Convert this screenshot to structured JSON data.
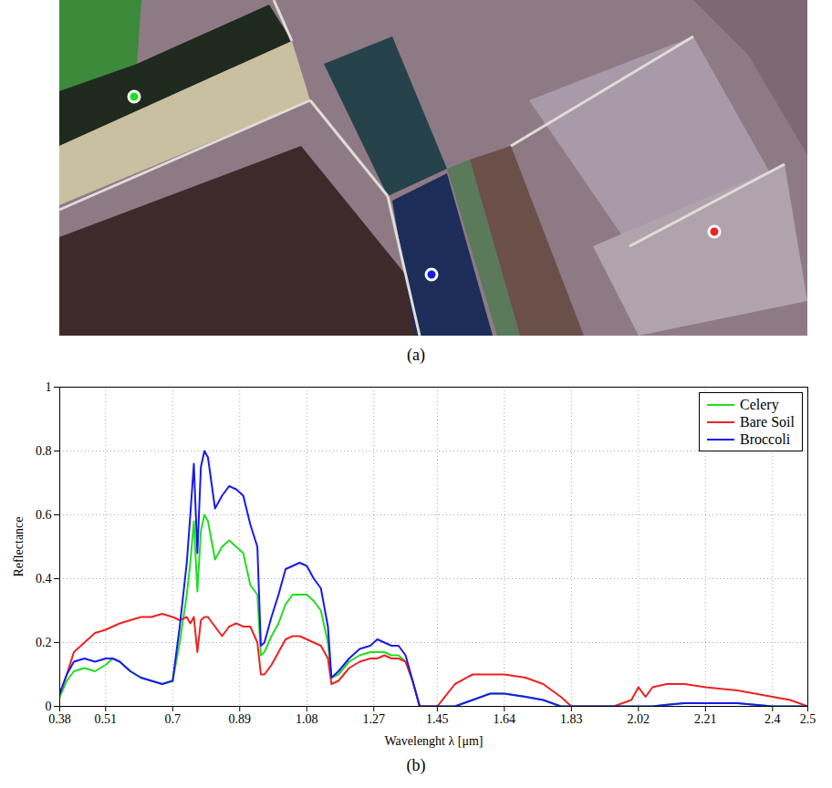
{
  "panel_labels": [
    "(a)",
    "(b)"
  ],
  "chart_data": {
    "type": "line",
    "x_label": "Wavelenght λ [μm]",
    "y_label": "Reflectance",
    "xlim": [
      0.38,
      2.5
    ],
    "xticks": [
      0.38,
      0.51,
      0.7,
      0.89,
      1.08,
      1.27,
      1.45,
      1.64,
      1.83,
      2.02,
      2.21,
      2.4,
      2.5
    ],
    "ylim": [
      0,
      1
    ],
    "yticks": [
      0,
      0.2,
      0.4,
      0.6,
      0.8,
      1
    ],
    "grid": true,
    "legend": "top-right",
    "x": [
      0.38,
      0.4,
      0.42,
      0.45,
      0.48,
      0.51,
      0.53,
      0.55,
      0.58,
      0.61,
      0.64,
      0.67,
      0.7,
      0.72,
      0.74,
      0.75,
      0.76,
      0.77,
      0.78,
      0.79,
      0.8,
      0.82,
      0.84,
      0.86,
      0.88,
      0.9,
      0.92,
      0.94,
      0.95,
      0.96,
      0.98,
      1.0,
      1.02,
      1.04,
      1.06,
      1.08,
      1.1,
      1.12,
      1.14,
      1.15,
      1.17,
      1.2,
      1.23,
      1.26,
      1.28,
      1.3,
      1.32,
      1.34,
      1.36,
      1.38,
      1.4,
      1.45,
      1.5,
      1.55,
      1.6,
      1.64,
      1.7,
      1.75,
      1.8,
      1.83,
      1.9,
      1.95,
      2.0,
      2.02,
      2.04,
      2.06,
      2.1,
      2.15,
      2.21,
      2.3,
      2.4,
      2.45,
      2.5
    ],
    "series": [
      {
        "name": "Celery",
        "color": "#22dd22",
        "values": [
          0.03,
          0.08,
          0.11,
          0.12,
          0.11,
          0.13,
          0.15,
          0.14,
          0.11,
          0.09,
          0.08,
          0.07,
          0.08,
          0.2,
          0.35,
          0.45,
          0.58,
          0.36,
          0.55,
          0.6,
          0.58,
          0.46,
          0.5,
          0.52,
          0.5,
          0.48,
          0.38,
          0.35,
          0.16,
          0.17,
          0.22,
          0.26,
          0.32,
          0.35,
          0.35,
          0.35,
          0.33,
          0.3,
          0.2,
          0.09,
          0.1,
          0.14,
          0.16,
          0.17,
          0.17,
          0.17,
          0.16,
          0.16,
          0.14,
          0.08,
          0,
          0,
          0,
          0.02,
          0.04,
          0.04,
          0.03,
          0.02,
          0,
          0,
          0,
          0,
          0,
          0,
          0,
          0,
          0.005,
          0.01,
          0.01,
          0.01,
          0,
          0,
          0
        ]
      },
      {
        "name": "Bare Soil",
        "color": "#ee2222",
        "values": [
          0.04,
          0.1,
          0.17,
          0.2,
          0.23,
          0.24,
          0.25,
          0.26,
          0.27,
          0.28,
          0.28,
          0.29,
          0.28,
          0.27,
          0.28,
          0.26,
          0.28,
          0.17,
          0.27,
          0.28,
          0.28,
          0.25,
          0.22,
          0.25,
          0.26,
          0.25,
          0.25,
          0.2,
          0.1,
          0.1,
          0.13,
          0.17,
          0.21,
          0.22,
          0.22,
          0.21,
          0.2,
          0.19,
          0.15,
          0.07,
          0.08,
          0.12,
          0.14,
          0.15,
          0.15,
          0.16,
          0.15,
          0.15,
          0.14,
          0.08,
          0,
          0,
          0.07,
          0.1,
          0.1,
          0.1,
          0.09,
          0.07,
          0.03,
          0,
          0,
          0,
          0.02,
          0.06,
          0.03,
          0.06,
          0.07,
          0.07,
          0.06,
          0.05,
          0.03,
          0.02,
          0
        ]
      },
      {
        "name": "Broccoli",
        "color": "#1a1aee",
        "values": [
          0.04,
          0.1,
          0.14,
          0.15,
          0.14,
          0.15,
          0.15,
          0.14,
          0.11,
          0.09,
          0.08,
          0.07,
          0.08,
          0.25,
          0.45,
          0.6,
          0.76,
          0.48,
          0.75,
          0.8,
          0.78,
          0.62,
          0.66,
          0.69,
          0.68,
          0.66,
          0.57,
          0.5,
          0.19,
          0.2,
          0.28,
          0.35,
          0.43,
          0.44,
          0.45,
          0.44,
          0.4,
          0.37,
          0.25,
          0.09,
          0.11,
          0.15,
          0.18,
          0.19,
          0.21,
          0.2,
          0.19,
          0.19,
          0.16,
          0.08,
          0,
          0,
          0,
          0.02,
          0.04,
          0.04,
          0.03,
          0.02,
          0,
          0,
          0,
          0,
          0,
          0,
          0,
          0,
          0.005,
          0.01,
          0.01,
          0.01,
          0,
          0,
          0
        ]
      }
    ]
  }
}
